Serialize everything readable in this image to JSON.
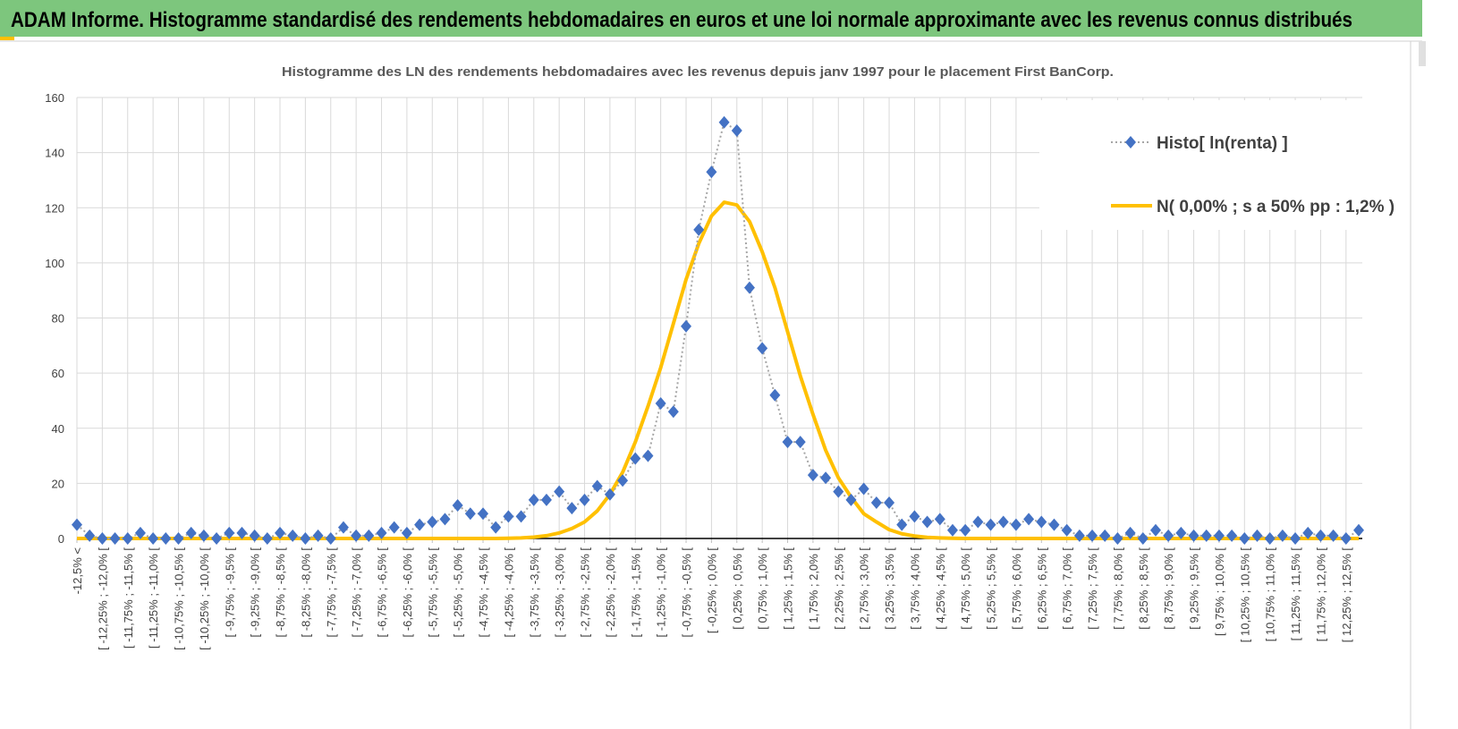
{
  "header": {
    "title": "ADAM Informe. Histogramme standardisé des rendements hebdomadaires en euros et une loi normale approximante avec les revenus connus distribués",
    "bar_color": "#7dc67d"
  },
  "chart_data": {
    "type": "line",
    "title": "Histogramme des LN des rendements hebdomadaires avec les revenus depuis janv 1997 pour le placement First BanCorp.",
    "xlabel": "",
    "ylabel": "",
    "ylim": [
      0,
      160
    ],
    "yticks": [
      "0",
      "20",
      "40",
      "60",
      "80",
      "100",
      "120",
      "140",
      "160"
    ],
    "grid": true,
    "legend_position": "top-right",
    "tick_labels_every": 2,
    "tick_labels": [
      "-12,5% <",
      "[ -12,25% ; -12,0% [",
      "[ -11,75% ; -11,5% [",
      "[ -11,25% ; -11,0% [",
      "[ -10,75% ; -10,5% [",
      "[ -10,25% ; -10,0% [",
      "[ -9,75% ; -9,5% [",
      "[ -9,25% ; -9,0% [",
      "[ -8,75% ; -8,5% [",
      "[ -8,25% ; -8,0% [",
      "[ -7,75% ; -7,5% [",
      "[ -7,25% ; -7,0% [",
      "[ -6,75% ; -6,5% [",
      "[ -6,25% ; -6,0% [",
      "[ -5,75% ; -5,5% [",
      "[ -5,25% ; -5,0% [",
      "[ -4,75% ; -4,5% [",
      "[ -4,25% ; -4,0% [",
      "[ -3,75% ; -3,5% [",
      "[ -3,25% ; -3,0% [",
      "[ -2,75% ; -2,5% [",
      "[ -2,25% ; -2,0% [",
      "[ -1,75% ; -1,5% [",
      "[ -1,25% ; -1,0% [",
      "[ -0,75% ; -0,5% [",
      "[ -0,25% ; 0,0% [",
      "[ 0,25% ; 0,5% [",
      "[ 0,75% ; 1,0% [",
      "[ 1,25% ; 1,5% [",
      "[ 1,75% ; 2,0% [",
      "[ 2,25% ; 2,5% [",
      "[ 2,75% ; 3,0% [",
      "[ 3,25% ; 3,5% [",
      "[ 3,75% ; 4,0% [",
      "[ 4,25% ; 4,5% [",
      "[ 4,75% ; 5,0% [",
      "[ 5,25% ; 5,5% [",
      "[ 5,75% ; 6,0% [",
      "[ 6,25% ; 6,5% [",
      "[ 6,75% ; 7,0% [",
      "[ 7,25% ; 7,5% [",
      "[ 7,75% ; 8,0% [",
      "[ 8,25% ; 8,5% [",
      "[ 8,75% ; 9,0% [",
      "[ 9,25% ; 9,5% [",
      "[ 9,75% ; 10,0% [",
      "[ 10,25% ; 10,5% [",
      "[ 10,75% ; 11,0% [",
      "[ 11,25% ; 11,5% [",
      "[ 11,75% ; 12,0% [",
      "[ 12,25% ; 12,5% ["
    ],
    "series": [
      {
        "name": "Histo[ ln(renta) ]",
        "color": "#4472c4",
        "line_color": "#a6a6a6",
        "marker": "diamond",
        "values": [
          5,
          1,
          0,
          0,
          0,
          2,
          0,
          0,
          0,
          2,
          1,
          0,
          2,
          2,
          1,
          0,
          2,
          1,
          0,
          1,
          0,
          4,
          1,
          1,
          2,
          4,
          2,
          5,
          6,
          7,
          12,
          9,
          9,
          4,
          8,
          8,
          14,
          14,
          17,
          11,
          14,
          19,
          16,
          21,
          29,
          30,
          49,
          46,
          77,
          112,
          133,
          151,
          148,
          91,
          69,
          52,
          35,
          35,
          23,
          22,
          17,
          14,
          18,
          13,
          13,
          5,
          8,
          6,
          7,
          3,
          3,
          6,
          5,
          6,
          5,
          7,
          6,
          5,
          3,
          1,
          1,
          1,
          0,
          2,
          0,
          3,
          1,
          2,
          1,
          1,
          1,
          1,
          0,
          1,
          0,
          1,
          0,
          2,
          1,
          1,
          0,
          3
        ]
      },
      {
        "name": "N( 0,00% ; s a 50% pp : 1,2% )",
        "color": "#ffc000",
        "values": [
          0,
          0,
          0,
          0,
          0,
          0,
          0,
          0,
          0,
          0,
          0,
          0,
          0,
          0,
          0,
          0,
          0,
          0,
          0,
          0,
          0,
          0,
          0,
          0,
          0,
          0,
          0,
          0,
          0,
          0,
          0,
          0,
          0,
          0,
          0.1,
          0.2,
          0.5,
          1,
          2,
          3.6,
          6,
          10,
          16,
          24,
          35,
          48,
          62,
          78,
          94,
          107,
          117,
          122,
          121,
          115,
          104,
          91,
          75,
          59,
          45,
          32,
          22,
          15,
          9,
          6,
          3.2,
          1.7,
          0.9,
          0.4,
          0.2,
          0.1,
          0,
          0,
          0,
          0,
          0,
          0,
          0,
          0,
          0,
          0,
          0,
          0,
          0,
          0,
          0,
          0,
          0,
          0,
          0,
          0,
          0,
          0,
          0,
          0,
          0,
          0,
          0,
          0,
          0,
          0,
          0,
          0
        ]
      }
    ]
  }
}
